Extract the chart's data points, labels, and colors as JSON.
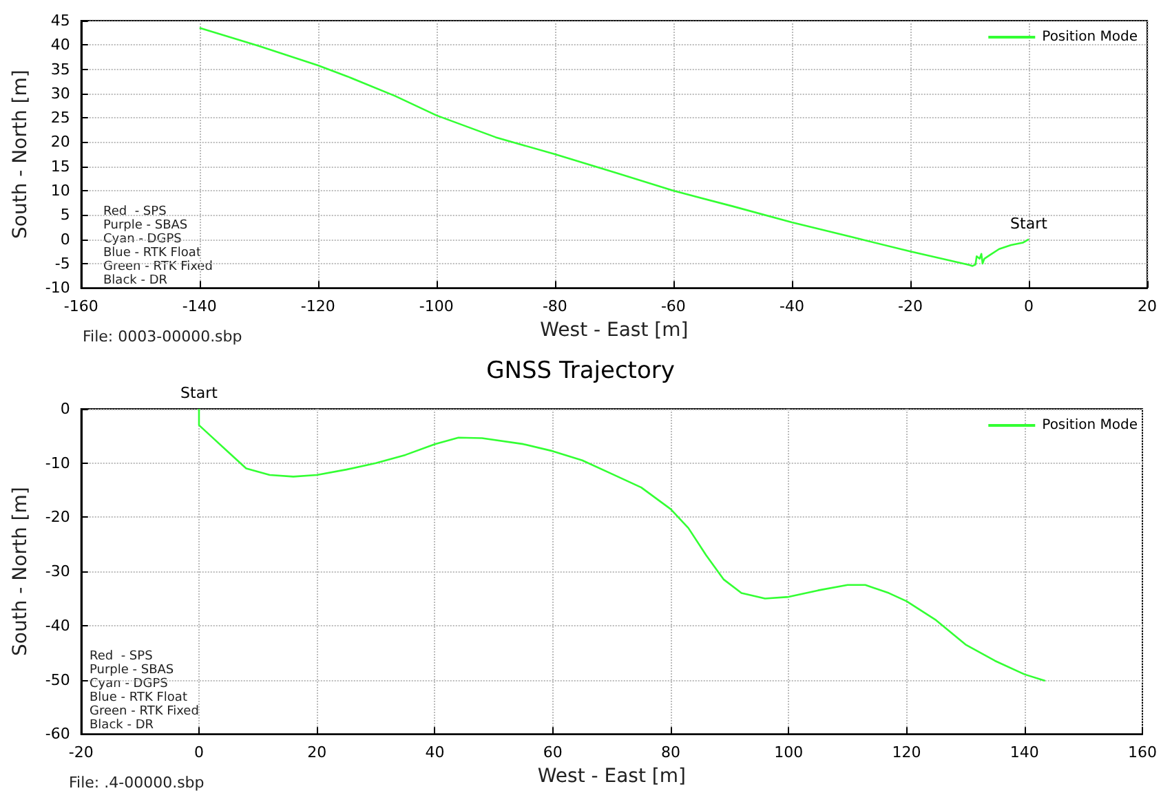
{
  "chart_data": [
    {
      "type": "line",
      "xlabel": "West - East [m]",
      "ylabel": "South - North [m]",
      "xlim": [
        -160,
        20
      ],
      "xticks": [
        -160,
        -140,
        -120,
        -100,
        -80,
        -60,
        -40,
        -20,
        0,
        20
      ],
      "ylim": [
        -10,
        45
      ],
      "yticks": [
        -10,
        -5,
        0,
        5,
        10,
        15,
        20,
        25,
        30,
        35,
        40,
        45
      ],
      "grid": true,
      "legend": "top right",
      "series": [
        {
          "name": "Position Mode",
          "color": "#33ff33",
          "x": [
            0,
            -1,
            -3,
            -5,
            -6.5,
            -7.5,
            -7.8,
            -8,
            -8.3,
            -8.8,
            -9,
            -9.5,
            -10,
            -20,
            -30,
            -40,
            -50,
            -60,
            -70,
            -80,
            -90,
            -100,
            -107,
            -115,
            -120,
            -130,
            -140
          ],
          "values": [
            0,
            -0.7,
            -1.2,
            -2,
            -3.2,
            -4,
            -5,
            -3,
            -4,
            -3.5,
            -5.2,
            -5.5,
            -5.3,
            -2.5,
            0.5,
            3.5,
            6.8,
            10,
            13.8,
            17.5,
            21,
            25.5,
            29.5,
            33.5,
            35.8,
            39.8,
            43.5
          ]
        }
      ],
      "annotations": [
        {
          "text": "Start",
          "x": 0,
          "y": 0
        },
        "Red  - SPS",
        "Purple - SBAS",
        "Cyan - DGPS",
        "Blue - RTK Float",
        "Green - RTK Fixed",
        "Black - DR",
        "File: 0003-00000.sbp"
      ]
    },
    {
      "type": "line",
      "title": "GNSS Trajectory",
      "xlabel": "West - East [m]",
      "ylabel": "South - North [m]",
      "xlim": [
        -20,
        160
      ],
      "xticks": [
        -20,
        0,
        20,
        40,
        60,
        80,
        100,
        120,
        140,
        160
      ],
      "ylim": [
        -60,
        0
      ],
      "yticks": [
        -60,
        -50,
        -40,
        -30,
        -20,
        -10,
        0
      ],
      "grid": true,
      "legend": "top right",
      "series": [
        {
          "name": "Position Mode",
          "color": "#33ff33",
          "x": [
            0,
            0,
            2,
            5,
            8,
            12,
            16,
            20,
            25,
            30,
            35,
            40,
            44,
            48,
            55,
            60,
            65,
            70,
            75,
            80,
            83,
            86,
            89,
            92,
            96,
            100,
            105,
            110,
            113,
            117,
            120,
            125,
            130,
            135,
            140,
            143.5
          ],
          "values": [
            0,
            -3,
            -5,
            -8,
            -11,
            -12.2,
            -12.5,
            -12.2,
            -11.2,
            -10,
            -8.5,
            -6.5,
            -5.3,
            -5.4,
            -6.5,
            -7.8,
            -9.5,
            -12,
            -14.5,
            -18.5,
            -22,
            -27,
            -31.5,
            -34,
            -35,
            -34.7,
            -33.5,
            -32.5,
            -32.5,
            -34,
            -35.5,
            -39,
            -43.5,
            -46.5,
            -49,
            -50.2
          ]
        }
      ],
      "annotations": [
        {
          "text": "Start",
          "x": 0,
          "y": 0
        },
        "Red  - SPS",
        "Purple - SBAS",
        "Cyan - DGPS",
        "Blue - RTK Float",
        "Green - RTK Fixed",
        "Black - DR",
        "File: .4-00000.sbp"
      ]
    }
  ]
}
